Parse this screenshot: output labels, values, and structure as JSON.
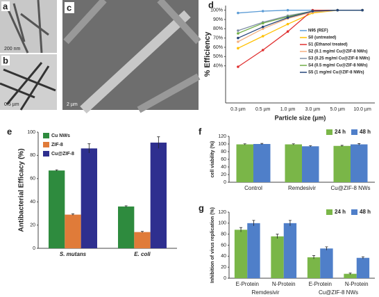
{
  "panels": [
    {
      "label": "a",
      "scale": "200 nm"
    },
    {
      "label": "b",
      "scale": "0.5 µm"
    },
    {
      "label": "c",
      "scale": "2 µm"
    }
  ],
  "chart_data": [
    {
      "type": "line",
      "label": "d",
      "xlabel": "Particle size (µm)",
      "ylabel": "% Efficiency",
      "legend": "right",
      "categories": [
        "0.3 µm",
        "0.5 µm",
        "1.0 µm",
        "3.0 µm",
        "5.0 µm",
        "10.0 µm"
      ],
      "ylim": [
        0,
        105
      ],
      "yticks": [
        {
          "value": 40,
          "label": "40%"
        },
        {
          "value": 50,
          "label": "50%"
        },
        {
          "value": 60,
          "label": "60%"
        },
        {
          "value": 70,
          "label": "70%"
        },
        {
          "value": 80,
          "label": "80%"
        },
        {
          "value": 90,
          "label": "90%"
        },
        {
          "value": 100,
          "label": "100%"
        }
      ],
      "series": [
        {
          "name": "N95 (REF)",
          "color": "#5b9bd5",
          "values": [
            97,
            99,
            100,
            100,
            100,
            100
          ]
        },
        {
          "name": "S0 (untreated)",
          "color": "#ffc000",
          "values": [
            59,
            72,
            85,
            97,
            100,
            100
          ]
        },
        {
          "name": "S1 (Ethanol treated)",
          "color": "#e03030",
          "values": [
            39,
            57,
            77,
            100,
            100,
            100
          ]
        },
        {
          "name": "S2 (0.1 mg/ml Cu@ZIF-8 NWs)",
          "color": "#f4b183",
          "values": [
            66,
            80,
            91,
            98,
            100,
            100
          ]
        },
        {
          "name": "S3 (0.25 mg/ml Cu@ZIF-8 NWs)",
          "color": "#7f8fa6",
          "values": [
            78,
            87,
            94,
            99,
            100,
            100
          ]
        },
        {
          "name": "S4 (0.5 mg/ml Cu@ZIF-8 NWs)",
          "color": "#70ad47",
          "values": [
            75,
            86,
            93,
            99,
            100,
            100
          ]
        },
        {
          "name": "S5 (1 mg/ml Cu@ZIF-8 NWs)",
          "color": "#264478",
          "values": [
            70,
            82,
            92,
            99,
            100,
            100
          ]
        }
      ]
    },
    {
      "type": "bar",
      "label": "e",
      "ylabel": "Antibacterial Efficacy (%)",
      "legend": "top-left",
      "italic": true,
      "categories": [
        "S. mutans",
        "E. coli"
      ],
      "ylim": [
        0,
        100
      ],
      "yticks": [
        0,
        20,
        40,
        60,
        80,
        100
      ],
      "series": [
        {
          "name": "Cu NWs",
          "color": "#2e8b3e",
          "values": [
            67,
            36
          ],
          "errors": [
            0.6,
            0.6
          ]
        },
        {
          "name": "ZIF-8",
          "color": "#e07b39",
          "values": [
            29,
            14
          ],
          "errors": [
            0.6,
            0.6
          ]
        },
        {
          "name": "Cu@ZIF-8",
          "color": "#2e2f8f",
          "values": [
            86,
            91
          ],
          "errors": [
            4,
            5
          ]
        }
      ]
    },
    {
      "type": "bar",
      "label": "f",
      "ylabel": "cell viability (%)",
      "legend": "top-right",
      "categories": [
        "Control",
        "Remdesivir",
        "Cu@ZIF-8 NWs"
      ],
      "ylim": [
        0,
        120
      ],
      "yticks": [
        0,
        20,
        40,
        60,
        80,
        100,
        120
      ],
      "series": [
        {
          "name": "24 h",
          "color": "#7ab648",
          "values": [
            99,
            99,
            95
          ],
          "errors": [
            1.5,
            1.5,
            1.5
          ]
        },
        {
          "name": "48 h",
          "color": "#4f7fc9",
          "values": [
            100,
            94,
            99
          ],
          "errors": [
            1.5,
            1.5,
            2
          ]
        }
      ]
    },
    {
      "type": "bar",
      "label": "g",
      "ylabel": "Inhibition of virus replication (%)",
      "legend": "top-right",
      "categories": [
        "E-Protein",
        "N-Protein",
        "E-Protein",
        "N-Protein"
      ],
      "groups": [
        "Remdesivir",
        "Cu@ZIF-8 NWs"
      ],
      "ylim": [
        0,
        120
      ],
      "yticks": [
        0,
        20,
        40,
        60,
        80,
        100,
        120
      ],
      "series": [
        {
          "name": "24 h",
          "color": "#7ab648",
          "values": [
            88,
            76,
            38,
            8
          ],
          "errors": [
            4,
            4,
            3,
            1.5
          ]
        },
        {
          "name": "48 h",
          "color": "#4f7fc9",
          "values": [
            100,
            100,
            54,
            37
          ],
          "errors": [
            5,
            5,
            3,
            2
          ]
        }
      ]
    }
  ]
}
